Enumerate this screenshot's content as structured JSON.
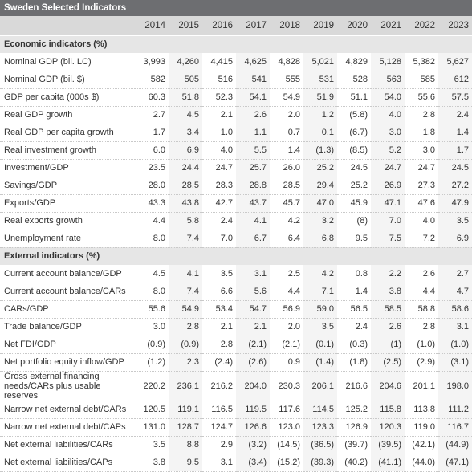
{
  "title": "Sweden Selected Indicators",
  "years": [
    "2014",
    "2015",
    "2016",
    "2017",
    "2018",
    "2019",
    "2020",
    "2021",
    "2022",
    "2023"
  ],
  "sections": [
    {
      "name": "Economic indicators (%)",
      "rows": [
        {
          "label": "Nominal GDP (bil. LC)",
          "values": [
            "3,993",
            "4,260",
            "4,415",
            "4,625",
            "4,828",
            "5,021",
            "4,829",
            "5,128",
            "5,382",
            "5,627"
          ]
        },
        {
          "label": "Nominal GDP (bil. $)",
          "values": [
            "582",
            "505",
            "516",
            "541",
            "555",
            "531",
            "528",
            "563",
            "585",
            "612"
          ]
        },
        {
          "label": "GDP per capita (000s $)",
          "values": [
            "60.3",
            "51.8",
            "52.3",
            "54.1",
            "54.9",
            "51.9",
            "51.1",
            "54.0",
            "55.6",
            "57.5"
          ]
        },
        {
          "label": "Real GDP growth",
          "values": [
            "2.7",
            "4.5",
            "2.1",
            "2.6",
            "2.0",
            "1.2",
            "(5.8)",
            "4.0",
            "2.8",
            "2.4"
          ]
        },
        {
          "label": "Real GDP per capita growth",
          "values": [
            "1.7",
            "3.4",
            "1.0",
            "1.1",
            "0.7",
            "0.1",
            "(6.7)",
            "3.0",
            "1.8",
            "1.4"
          ]
        },
        {
          "label": "Real investment growth",
          "values": [
            "6.0",
            "6.9",
            "4.0",
            "5.5",
            "1.4",
            "(1.3)",
            "(8.5)",
            "5.2",
            "3.0",
            "1.7"
          ]
        },
        {
          "label": "Investment/GDP",
          "values": [
            "23.5",
            "24.4",
            "24.7",
            "25.7",
            "26.0",
            "25.2",
            "24.5",
            "24.7",
            "24.7",
            "24.5"
          ]
        },
        {
          "label": "Savings/GDP",
          "values": [
            "28.0",
            "28.5",
            "28.3",
            "28.8",
            "28.5",
            "29.4",
            "25.2",
            "26.9",
            "27.3",
            "27.2"
          ]
        },
        {
          "label": "Exports/GDP",
          "values": [
            "43.3",
            "43.8",
            "42.7",
            "43.7",
            "45.7",
            "47.0",
            "45.9",
            "47.1",
            "47.6",
            "47.9"
          ]
        },
        {
          "label": "Real exports growth",
          "values": [
            "4.4",
            "5.8",
            "2.4",
            "4.1",
            "4.2",
            "3.2",
            "(8)",
            "7.0",
            "4.0",
            "3.5"
          ]
        },
        {
          "label": "Unemployment rate",
          "values": [
            "8.0",
            "7.4",
            "7.0",
            "6.7",
            "6.4",
            "6.8",
            "9.5",
            "7.5",
            "7.2",
            "6.9"
          ]
        }
      ]
    },
    {
      "name": "External indicators (%)",
      "rows": [
        {
          "label": "Current account balance/GDP",
          "values": [
            "4.5",
            "4.1",
            "3.5",
            "3.1",
            "2.5",
            "4.2",
            "0.8",
            "2.2",
            "2.6",
            "2.7"
          ]
        },
        {
          "label": "Current account balance/CARs",
          "values": [
            "8.0",
            "7.4",
            "6.6",
            "5.6",
            "4.4",
            "7.1",
            "1.4",
            "3.8",
            "4.4",
            "4.7"
          ]
        },
        {
          "label": "CARs/GDP",
          "values": [
            "55.6",
            "54.9",
            "53.4",
            "54.7",
            "56.9",
            "59.0",
            "56.5",
            "58.5",
            "58.8",
            "58.6"
          ]
        },
        {
          "label": "Trade balance/GDP",
          "values": [
            "3.0",
            "2.8",
            "2.1",
            "2.1",
            "2.0",
            "3.5",
            "2.4",
            "2.6",
            "2.8",
            "3.1"
          ]
        },
        {
          "label": "Net FDI/GDP",
          "values": [
            "(0.9)",
            "(0.9)",
            "2.8",
            "(2.1)",
            "(2.1)",
            "(0.1)",
            "(0.3)",
            "(1)",
            "(1.0)",
            "(1.0)"
          ]
        },
        {
          "label": "Net portfolio equity inflow/GDP",
          "values": [
            "(1.2)",
            "2.3",
            "(2.4)",
            "(2.6)",
            "0.9",
            "(1.4)",
            "(1.8)",
            "(2.5)",
            "(2.9)",
            "(3.1)"
          ]
        },
        {
          "label": "Gross external financing needs/CARs plus usable reserves",
          "tall": true,
          "values": [
            "220.2",
            "236.1",
            "216.2",
            "204.0",
            "230.3",
            "206.1",
            "216.6",
            "204.6",
            "201.1",
            "198.0"
          ]
        },
        {
          "label": "Narrow net external debt/CARs",
          "values": [
            "120.5",
            "119.1",
            "116.5",
            "119.5",
            "117.6",
            "114.5",
            "125.2",
            "115.8",
            "113.8",
            "111.2"
          ]
        },
        {
          "label": "Narrow net external debt/CAPs",
          "values": [
            "131.0",
            "128.7",
            "124.7",
            "126.6",
            "123.0",
            "123.3",
            "126.9",
            "120.3",
            "119.0",
            "116.7"
          ]
        },
        {
          "label": "Net external liabilities/CARs",
          "values": [
            "3.5",
            "8.8",
            "2.9",
            "(3.2)",
            "(14.5)",
            "(36.5)",
            "(39.7)",
            "(39.5)",
            "(42.1)",
            "(44.9)"
          ]
        },
        {
          "label": "Net external liabilities/CAPs",
          "values": [
            "3.8",
            "9.5",
            "3.1",
            "(3.4)",
            "(15.2)",
            "(39.3)",
            "(40.2)",
            "(41.1)",
            "(44.0)",
            "(47.1)"
          ]
        }
      ]
    }
  ]
}
